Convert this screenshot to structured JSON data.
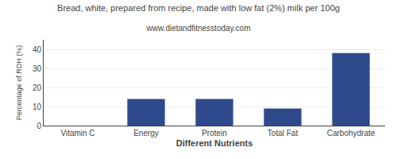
{
  "chart_data": {
    "type": "bar",
    "title": "Bread, white, prepared from recipe, made with low fat (2%) milk per 100g",
    "subtitle": "www.dietandfitnesstoday.com",
    "xlabel": "Different Nutrients",
    "ylabel": "Percentage of RDH (%)",
    "categories": [
      "Vitamin C",
      "Energy",
      "Protein",
      "Total Fat",
      "Carbohydrate"
    ],
    "values": [
      0,
      14,
      14,
      9,
      38
    ],
    "color": "#2e4a8c",
    "ylim": [
      0,
      45
    ],
    "yticks": [
      0,
      10,
      20,
      30,
      40
    ],
    "grid": true
  }
}
